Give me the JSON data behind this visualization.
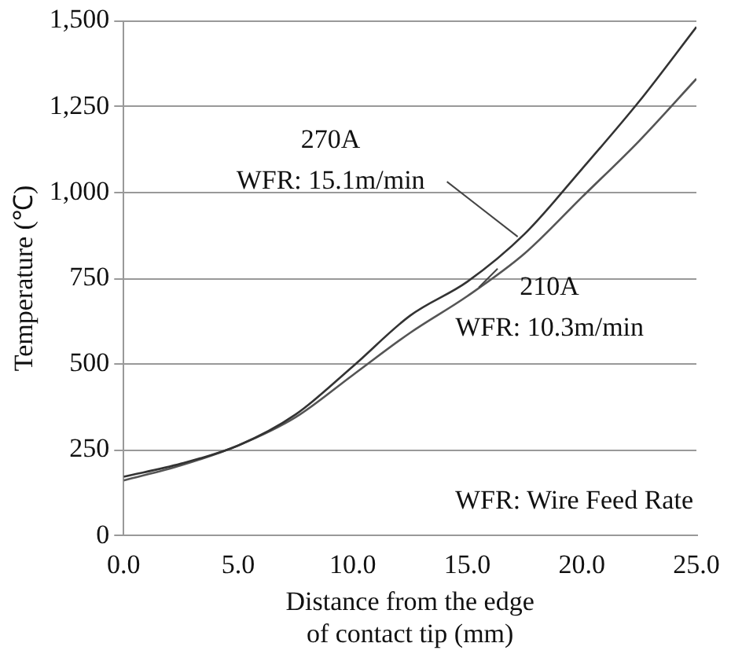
{
  "chart_data": {
    "type": "line",
    "xlabel": "Distance from the edge\nof contact tip (mm)",
    "ylabel": "Temperature (℃)",
    "x": [
      0,
      2.5,
      5,
      7.5,
      10,
      12.5,
      15,
      17.5,
      20,
      22.5,
      25
    ],
    "series": [
      {
        "color": "#333333",
        "values": [
          172,
          210,
          263,
          353,
          493,
          641,
          740,
          879,
          1068,
          1265,
          1482
        ]
      },
      {
        "color": "#555555",
        "values": [
          161,
          205,
          263,
          345,
          468,
          591,
          698,
          822,
          986,
          1150,
          1331
        ]
      }
    ],
    "xlim": [
      0,
      25
    ],
    "xticks": [
      {
        "value": 0,
        "label": "0.0"
      },
      {
        "value": 5,
        "label": "5.0"
      },
      {
        "value": 10,
        "label": "10.0"
      },
      {
        "value": 15,
        "label": "15.0"
      },
      {
        "value": 20,
        "label": "20.0"
      },
      {
        "value": 25,
        "label": "25.0"
      }
    ],
    "ylim": [
      0,
      1500
    ],
    "yticks": [
      0,
      250,
      500,
      750,
      {
        "value": 1000,
        "label": "1,000"
      },
      {
        "value": 1250,
        "label": "1,250"
      },
      {
        "value": 1500,
        "label": "1,500"
      }
    ],
    "grid": "y",
    "legend": false,
    "marker": "none",
    "line_style": "solid",
    "annotations": [
      {
        "text": "270A\nWFR: 15.1m/min",
        "x": 17.2,
        "y": 871
      },
      {
        "text": "210A\nWFR: 10.3m/min",
        "x": 15.5,
        "y": 723
      },
      "WFR: Wire Feed Rate"
    ]
  }
}
